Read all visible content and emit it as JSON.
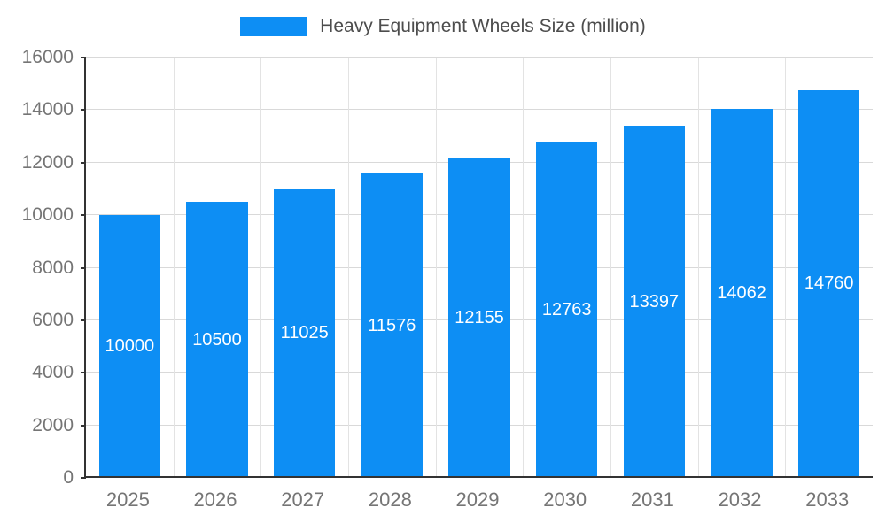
{
  "colors": {
    "bar": "#0d8ef4",
    "axis": "#333333",
    "grid": "#d9d9d9",
    "tick_text": "#757575",
    "title_text": "#4d4d4d",
    "bar_label_text": "#ffffff"
  },
  "chart_data": {
    "type": "bar",
    "title": "Heavy Equipment Wheels Size (million)",
    "categories": [
      "2025",
      "2026",
      "2027",
      "2028",
      "2029",
      "2030",
      "2031",
      "2032",
      "2033"
    ],
    "values": [
      10000,
      10500,
      11025,
      11576,
      12155,
      12763,
      13397,
      14062,
      14760
    ],
    "xlabel": "",
    "ylabel": "",
    "ylim": [
      0,
      16000
    ],
    "yticks": [
      0,
      2000,
      4000,
      6000,
      8000,
      10000,
      12000,
      14000,
      16000
    ],
    "grid": true,
    "legend_position": "top",
    "bar_value_labels": "inside-center"
  }
}
